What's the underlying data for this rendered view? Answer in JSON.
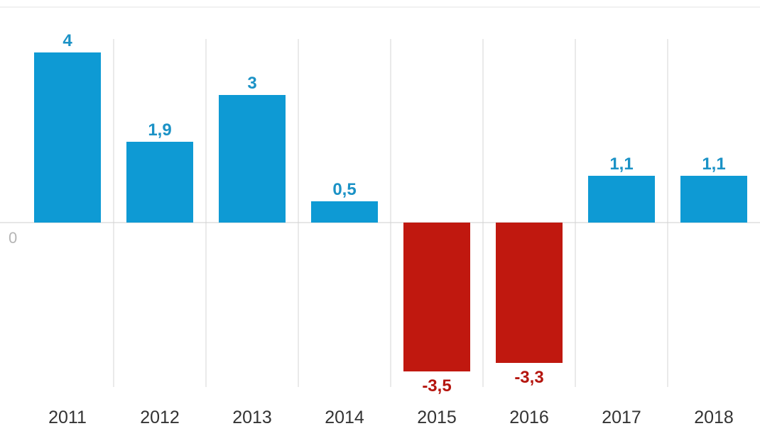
{
  "chart_data": {
    "type": "bar",
    "categories": [
      "2011",
      "2012",
      "2013",
      "2014",
      "2015",
      "2016",
      "2017",
      "2018"
    ],
    "values": [
      4,
      1.9,
      3,
      0.5,
      -3.5,
      -3.3,
      1.1,
      1.1
    ],
    "value_labels": [
      "4",
      "1,9",
      "3",
      "0,5",
      "-3,5",
      "-3,3",
      "1,1",
      "1,1"
    ],
    "zero_label": "0",
    "ylim": [
      -3.9,
      4.4
    ],
    "grid": "vertical separators between categories",
    "colors": {
      "positive": "#0e9ad4",
      "negative": "#c0180f",
      "positive_label": "#1b92c6",
      "negative_label": "#b5160f"
    }
  }
}
